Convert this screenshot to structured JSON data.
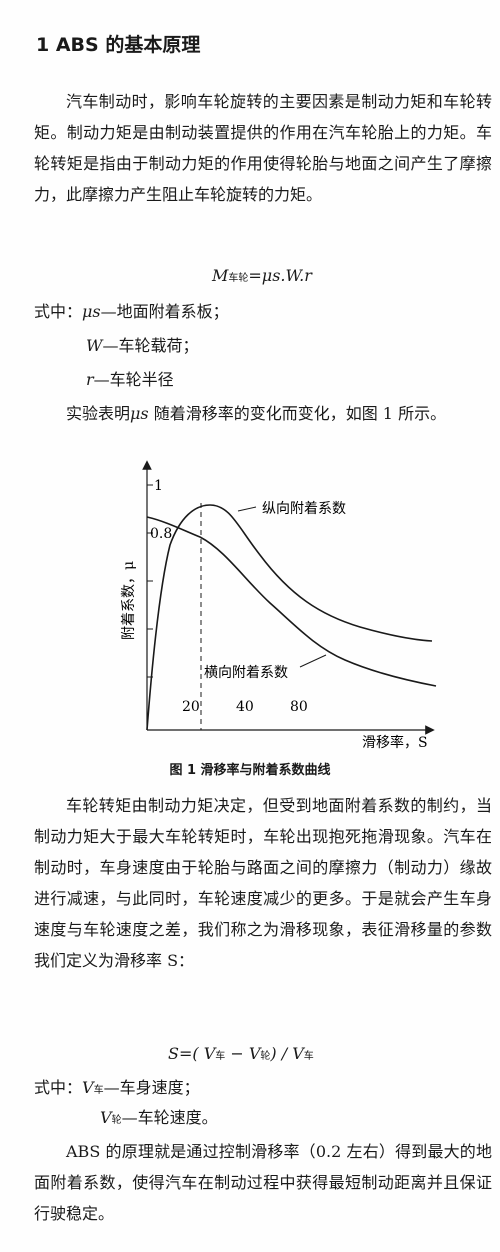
{
  "heading": "1  ABS 的基本原理",
  "para1": "汽车制动时，影响车轮旋转的主要因素是制动力矩和车轮转矩。制动力矩是由制动装置提供的作用在汽车轮胎上的力矩。车轮转矩是指由于制动力矩的作用使得轮胎与地面之间产生了摩擦力，此摩擦力产生阻止车轮旋转的力矩。",
  "formula1": {
    "lhs": "M",
    "sub": "车轮",
    "rhs": "=μs.W.r"
  },
  "defs1": {
    "lead": "式中：",
    "mu_sym": "μs",
    "mu_text": "—地面附着系板；",
    "w_sym": "W",
    "w_text": "—车轮载荷；",
    "r_sym": "r",
    "r_text": "—车轮半径"
  },
  "para2": {
    "pre": "实验表明",
    "sym": "μs",
    "post": " 随着滑移率的变化而变化，如图 1 所示。"
  },
  "figure": {
    "caption": "图 1  滑移率与附着系数曲线",
    "ylabel": "附着系数，μ",
    "xlabel": "滑移率，S",
    "y_ticks": [
      "1",
      "0.8"
    ],
    "x_ticks": [
      "20",
      "40",
      "80"
    ],
    "curve_longitudinal_label": "纵向附着系数",
    "curve_lateral_label": "横向附着系数",
    "axis_color": "#1a1a1a"
  },
  "para3": "车轮转矩由制动力矩决定，但受到地面附着系数的制约，当制动力矩大于最大车轮转矩时，车轮出现抱死拖滑现象。汽车在制动时，车身速度由于轮胎与路面之间的摩擦力（制动力）缘故进行减速，与此同时，车轮速度减少的更多。于是就会产生车身速度与车轮速度之差，我们称之为滑移现象，表征滑移量的参数我们定义为滑移率 S：",
  "formula2": {
    "a": "S=(  V",
    "b": "车",
    "c": " − V",
    "d": "轮",
    "e": ")  /  V",
    "f": "车"
  },
  "defs2": {
    "lead": "式中：",
    "v1_sym": "V",
    "v1_sub": "车",
    "v1_text": "—车身速度；",
    "v2_sym": "V",
    "v2_sub": "轮",
    "v2_text": "—车轮速度。"
  },
  "para4": "ABS 的原理就是通过控制滑移率（0.2 左右）得到最大的地面附着系数，使得汽车在制动过程中获得最短制动距离并且保证行驶稳定。"
}
